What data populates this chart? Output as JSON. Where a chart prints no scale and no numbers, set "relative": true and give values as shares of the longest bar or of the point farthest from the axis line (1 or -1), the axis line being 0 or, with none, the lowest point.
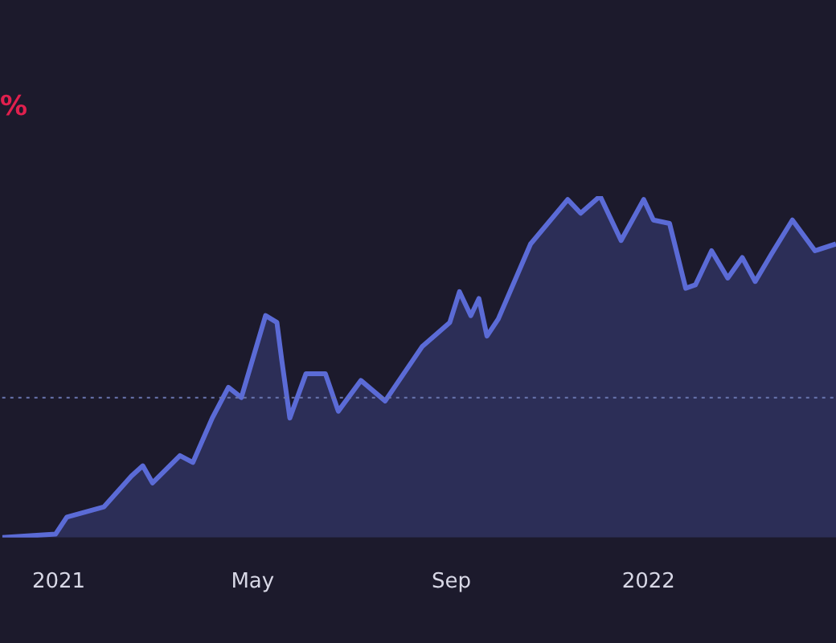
{
  "chart_data": {
    "type": "area",
    "relative": true,
    "x": [
      "2020-11-27",
      "2020-12-30",
      "2021-01-06",
      "2021-01-29",
      "2021-02-15",
      "2021-02-22",
      "2021-02-28",
      "2021-03-17",
      "2021-03-25",
      "2021-04-06",
      "2021-04-16",
      "2021-04-24",
      "2021-05-09",
      "2021-05-16",
      "2021-05-19",
      "2021-05-24",
      "2021-06-03",
      "2021-06-15",
      "2021-06-23",
      "2021-07-07",
      "2021-07-22",
      "2021-08-14",
      "2021-08-31",
      "2021-09-06",
      "2021-09-13",
      "2021-09-18",
      "2021-09-23",
      "2021-09-30",
      "2021-10-20",
      "2021-11-12",
      "2021-11-20",
      "2021-12-02",
      "2021-12-15",
      "2021-12-29",
      "2022-01-04",
      "2022-01-14",
      "2022-01-24",
      "2022-01-30",
      "2022-02-09",
      "2022-02-19",
      "2022-02-28",
      "2022-03-08",
      "2022-03-18",
      "2022-03-31",
      "2022-04-14",
      "2022-04-27"
    ],
    "series": [
      {
        "color": "#5b6bd6",
        "values": [
          0,
          0.01,
          0.06,
          0.09,
          0.18,
          0.21,
          0.16,
          0.24,
          0.22,
          0.35,
          0.44,
          0.41,
          0.65,
          0.63,
          0.52,
          0.35,
          0.48,
          0.48,
          0.37,
          0.46,
          0.4,
          0.56,
          0.63,
          0.72,
          0.65,
          0.7,
          0.59,
          0.64,
          0.86,
          0.99,
          0.95,
          1,
          0.87,
          0.99,
          0.93,
          0.92,
          0.73,
          0.74,
          0.84,
          0.76,
          0.82,
          0.75,
          0.83,
          0.93,
          0.84,
          0.86
        ]
      }
    ],
    "xlim": [
      "2020-11-27",
      "2022-04-27"
    ],
    "xticks": [
      {
        "value": "2021-01-01",
        "label": "2021"
      },
      {
        "value": "2021-05-01",
        "label": "May"
      },
      {
        "value": "2021-09-01",
        "label": "Sep"
      },
      {
        "value": "2022-01-01",
        "label": "2022"
      }
    ],
    "ref_lines": [
      {
        "axis": "y",
        "value": 0.41,
        "color": "#6a76b0",
        "line_style": "dotted"
      }
    ],
    "annotations": [
      "%"
    ],
    "grid": false,
    "legend": false,
    "marker": "none"
  }
}
